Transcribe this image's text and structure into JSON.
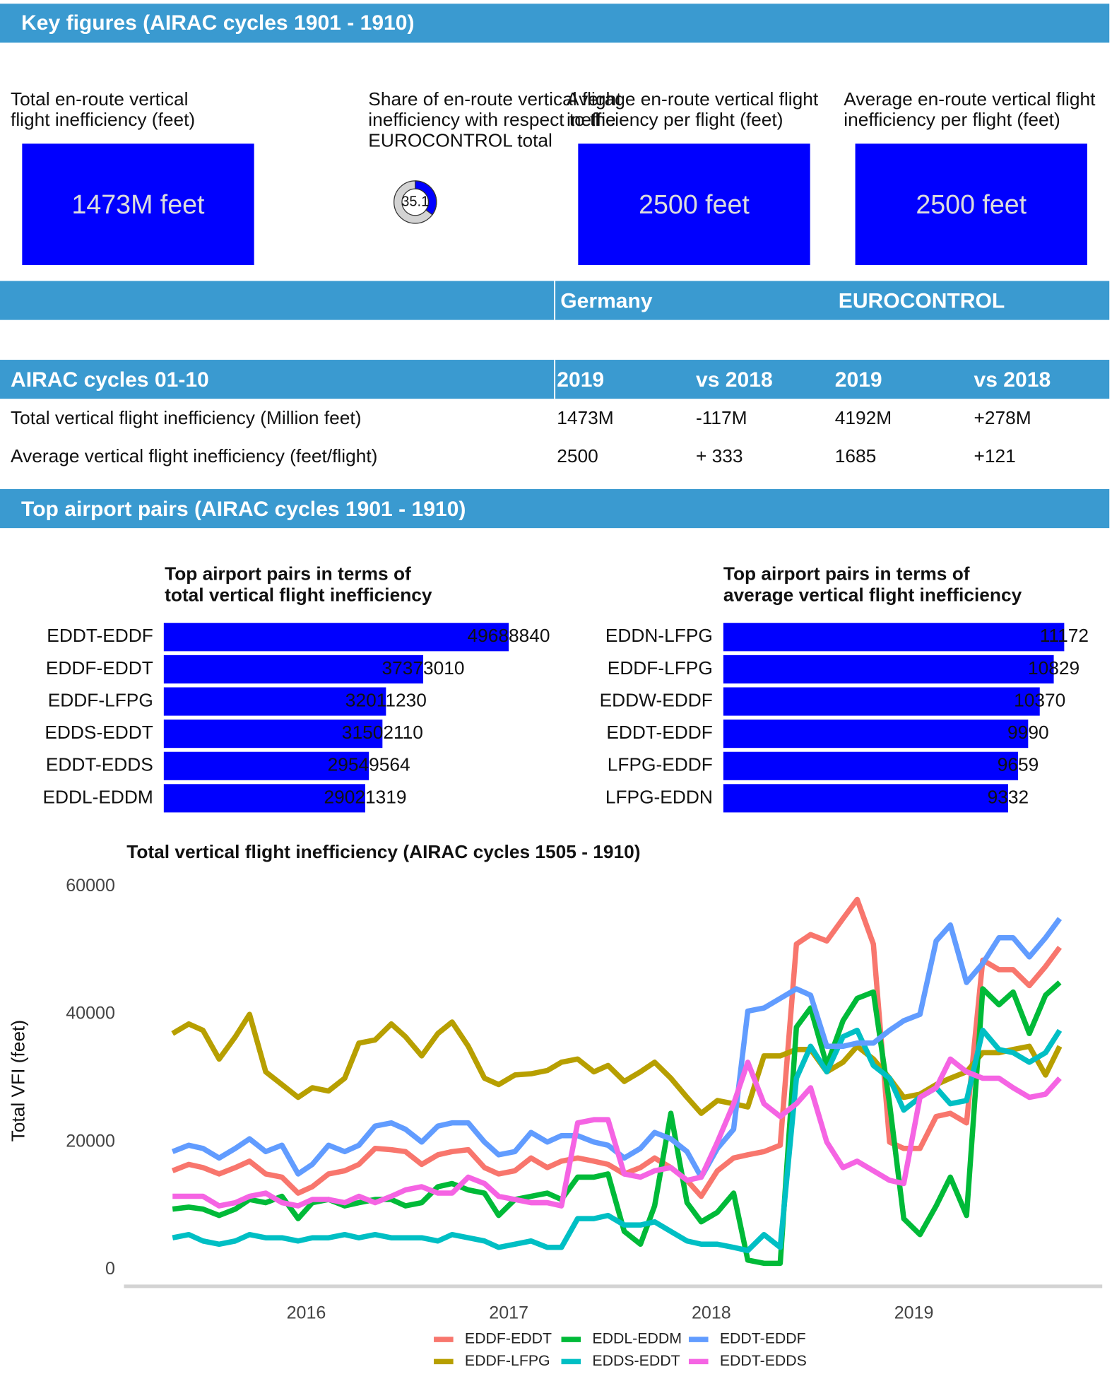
{
  "key_figures": {
    "title": "Key figures (AIRAC cycles 1901 - 1910)",
    "kpis": [
      {
        "label_lines": [
          "Total en-route vertical",
          "flight inefficiency (feet)"
        ],
        "value": "1473M feet"
      },
      {
        "label_lines": [
          "Average en-route vertical flight",
          "inefficiency per flight (feet)"
        ],
        "value": "2500 feet"
      },
      {
        "label_lines": [
          "Average en-route vertical flight",
          "inefficiency per flight (feet)"
        ],
        "value": "2500 feet"
      }
    ],
    "share": {
      "label_lines": [
        "Share of en-route vertical flight",
        "inefficiency with respect to the",
        "EUROCONTROL total"
      ],
      "value": 35.1,
      "color": "#0000ff",
      "track_color": "#d3d3d3"
    }
  },
  "comparison": {
    "columns": [
      "Germany",
      "EUROCONTROL"
    ]
  },
  "table": {
    "header": [
      "AIRAC cycles 01-10",
      "2019",
      "vs 2018",
      "2019",
      "vs 2018"
    ],
    "rows": [
      [
        "Total vertical flight inefficiency (Million feet)",
        "1473M",
        "-117M",
        "4192M",
        "+278M"
      ],
      [
        "Average vertical flight inefficiency (feet/flight)",
        "2500",
        "+ 333",
        "1685",
        "+121"
      ]
    ],
    "cell_colors": [
      [
        "#111111",
        "#111111",
        "#1a8c1a",
        "#111111",
        "#ff0000"
      ],
      [
        "#111111",
        "#111111",
        "#1a8c1a",
        "#111111",
        "#1a8c1a"
      ]
    ]
  },
  "top_pairs": {
    "title": "Top airport pairs (AIRAC cycles 1901 - 1910)"
  },
  "chart_data": [
    {
      "type": "hbar",
      "title_lines": [
        "Top airport pairs in terms of",
        "total vertical flight inefficiency"
      ],
      "categories": [
        "EDDT-EDDF",
        "EDDF-EDDT",
        "EDDF-LFPG",
        "EDDS-EDDT",
        "EDDT-EDDS",
        "EDDL-EDDM"
      ],
      "values": [
        49688840,
        37373010,
        32011230,
        31502110,
        29549564,
        29021319
      ],
      "color": "#0000ff",
      "xlim": [
        0,
        50000000
      ]
    },
    {
      "type": "hbar",
      "title_lines": [
        "Top airport pairs in terms of",
        "average vertical flight inefficiency"
      ],
      "categories": [
        "EDDN-LFPG",
        "EDDF-LFPG",
        "EDDW-EDDF",
        "EDDT-EDDF",
        "LFPG-EDDF",
        "LFPG-EDDN"
      ],
      "values": [
        11172,
        10829,
        10370,
        9990,
        9659,
        9332
      ],
      "color": "#0000ff",
      "xlim": [
        0,
        11200
      ]
    },
    {
      "type": "line",
      "title": "Total vertical flight inefficiency (AIRAC cycles 1505 - 1910)",
      "y_label": "Total VFI (feet)",
      "x": [
        2015.34,
        2015.42,
        2015.49,
        2015.57,
        2015.65,
        2015.72,
        2015.8,
        2015.88,
        2015.96,
        2016.03,
        2016.11,
        2016.19,
        2016.26,
        2016.34,
        2016.42,
        2016.49,
        2016.57,
        2016.65,
        2016.72,
        2016.8,
        2016.88,
        2016.95,
        2017.03,
        2017.11,
        2017.19,
        2017.26,
        2017.34,
        2017.42,
        2017.49,
        2017.57,
        2017.65,
        2017.72,
        2017.8,
        2017.88,
        2017.95,
        2018.03,
        2018.11,
        2018.18,
        2018.26,
        2018.34,
        2018.42,
        2018.49,
        2018.57,
        2018.65,
        2018.72,
        2018.8,
        2018.88,
        2018.95,
        2019.03,
        2019.11,
        2019.18,
        2019.26,
        2019.34,
        2019.42,
        2019.49,
        2019.57,
        2019.65,
        2019.72
      ],
      "xlim": [
        2015.1,
        2019.93
      ],
      "xticks": [
        2016,
        2017,
        2018,
        2019
      ],
      "ylim": [
        -2600,
        62200
      ],
      "yticks": [
        0,
        20000,
        40000,
        60000
      ],
      "series": [
        {
          "name": "EDDF-EDDT",
          "color": "#F8766D",
          "values": [
            15500,
            16500,
            16000,
            15000,
            16000,
            17000,
            15000,
            14500,
            12000,
            13000,
            15000,
            15500,
            16500,
            19000,
            18800,
            18500,
            16500,
            18000,
            18500,
            18800,
            16000,
            15000,
            15500,
            17500,
            16000,
            17000,
            17500,
            17000,
            16500,
            15000,
            16000,
            17500,
            16000,
            14000,
            11500,
            15500,
            17500,
            18000,
            18500,
            19500,
            51000,
            52500,
            51500,
            55000,
            58000,
            51000,
            20000,
            19000,
            19000,
            24000,
            24500,
            23000,
            48500,
            47000,
            47000,
            44500,
            47500,
            50500
          ]
        },
        {
          "name": "EDDF-LFPG",
          "color": "#B79F00",
          "values": [
            37000,
            38500,
            37500,
            33000,
            36500,
            40000,
            31000,
            29000,
            27000,
            28500,
            28000,
            30000,
            35500,
            36000,
            38500,
            36500,
            33500,
            37000,
            38800,
            35000,
            30000,
            29000,
            30500,
            30700,
            31200,
            32500,
            33000,
            31000,
            32000,
            29500,
            31000,
            32500,
            30000,
            27000,
            24500,
            26500,
            26000,
            25500,
            33500,
            33500,
            34500,
            34500,
            31000,
            32500,
            35000,
            33000,
            30000,
            27000,
            27500,
            29000,
            30000,
            31000,
            34000,
            34000,
            34500,
            35000,
            30500,
            35000
          ]
        },
        {
          "name": "EDDL-EDDM",
          "color": "#00BA38",
          "values": [
            9500,
            9800,
            9500,
            8500,
            9500,
            11000,
            10500,
            11500,
            8000,
            10500,
            11000,
            10000,
            10500,
            11000,
            11000,
            10000,
            10500,
            13000,
            13500,
            12500,
            12000,
            8500,
            11000,
            11500,
            12000,
            11000,
            14500,
            14500,
            15000,
            6000,
            4000,
            10000,
            24500,
            10500,
            7500,
            9000,
            12000,
            1500,
            1000,
            1000,
            38000,
            41000,
            32000,
            39000,
            42500,
            43500,
            26000,
            8000,
            5500,
            10000,
            14500,
            8500,
            44000,
            41500,
            43500,
            37000,
            43000,
            45000
          ]
        },
        {
          "name": "EDDS-EDDT",
          "color": "#00BFC4",
          "values": [
            5000,
            5500,
            4500,
            4000,
            4500,
            5500,
            5000,
            5000,
            4500,
            5000,
            5000,
            5500,
            5000,
            5500,
            5000,
            5000,
            5000,
            4500,
            5500,
            5000,
            4500,
            3500,
            4000,
            4500,
            3500,
            3500,
            8000,
            8000,
            8500,
            7000,
            7000,
            7500,
            6000,
            4500,
            4000,
            4000,
            3500,
            3000,
            5500,
            3500,
            30000,
            35000,
            31000,
            36500,
            37500,
            32000,
            30000,
            25000,
            27000,
            28500,
            26000,
            26500,
            37500,
            34500,
            34000,
            32500,
            34000,
            37500
          ]
        },
        {
          "name": "EDDT-EDDF",
          "color": "#619CFF",
          "values": [
            18500,
            19500,
            19000,
            17500,
            19000,
            20500,
            18500,
            19500,
            15000,
            16500,
            19500,
            18500,
            19500,
            22500,
            23000,
            22000,
            20000,
            22500,
            23000,
            23000,
            20000,
            18000,
            18500,
            21500,
            20000,
            21000,
            21000,
            20000,
            19500,
            17500,
            19000,
            21500,
            20500,
            18500,
            14500,
            19000,
            22000,
            40500,
            41000,
            42500,
            44000,
            43000,
            35000,
            35000,
            35500,
            35500,
            37500,
            39000,
            40000,
            51500,
            54000,
            45000,
            48000,
            52000,
            52000,
            49000,
            52000,
            55000
          ]
        },
        {
          "name": "EDDT-EDDS",
          "color": "#F564E3",
          "values": [
            11500,
            11500,
            11500,
            10000,
            10500,
            11500,
            12000,
            10500,
            10000,
            11000,
            11000,
            10500,
            11500,
            10500,
            11500,
            12500,
            13000,
            12000,
            12000,
            14500,
            13500,
            11500,
            11000,
            10500,
            10500,
            10000,
            23000,
            23500,
            23500,
            15000,
            14500,
            15500,
            16000,
            14000,
            14500,
            20000,
            26000,
            32500,
            26000,
            24000,
            26000,
            28500,
            20000,
            16000,
            17000,
            15500,
            14000,
            13500,
            27000,
            28500,
            33000,
            31000,
            30000,
            30000,
            28500,
            27000,
            27500,
            30000
          ]
        }
      ]
    }
  ]
}
